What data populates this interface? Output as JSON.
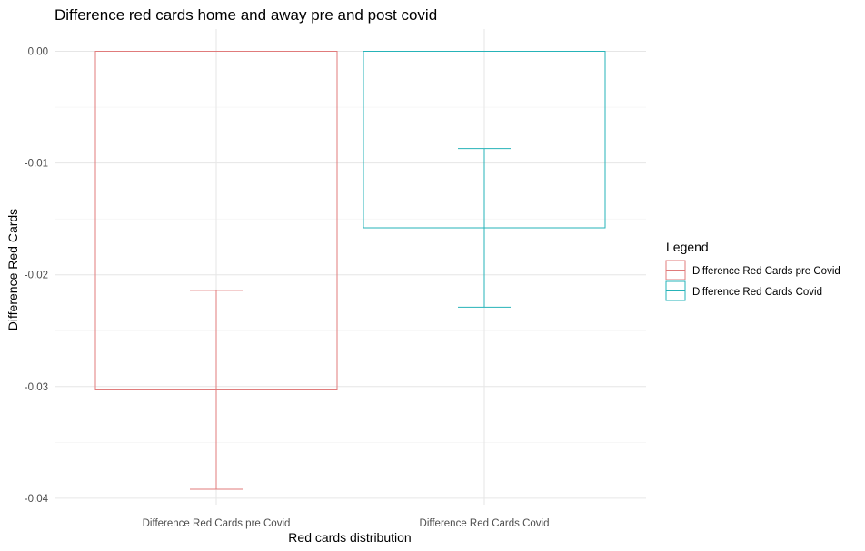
{
  "chart_data": {
    "type": "bar",
    "title": "Difference red cards home and away pre and post covid",
    "xlabel": "Red cards distribution",
    "ylabel": "Difference Red Cards",
    "categories": [
      "Difference Red Cards pre Covid",
      "Difference Red Cards Covid"
    ],
    "values": [
      -0.0303,
      -0.0158
    ],
    "error_bars": [
      {
        "low": -0.0392,
        "high": -0.0214
      },
      {
        "low": -0.0229,
        "high": -0.0087
      }
    ],
    "colors": [
      "#e07b7b",
      "#26b3b8"
    ],
    "bar_fill": "none",
    "ylim": [
      -0.04,
      0.0
    ],
    "yticks": [
      "0.00",
      "-0.01",
      "-0.02",
      "-0.03",
      "-0.04"
    ],
    "ytick_values": [
      0.0,
      -0.01,
      -0.02,
      -0.03,
      -0.04
    ],
    "grid": true,
    "legend": {
      "title": "Legend",
      "position": "right",
      "items": [
        "Difference Red Cards pre Covid",
        "Difference Red Cards Covid"
      ]
    }
  }
}
